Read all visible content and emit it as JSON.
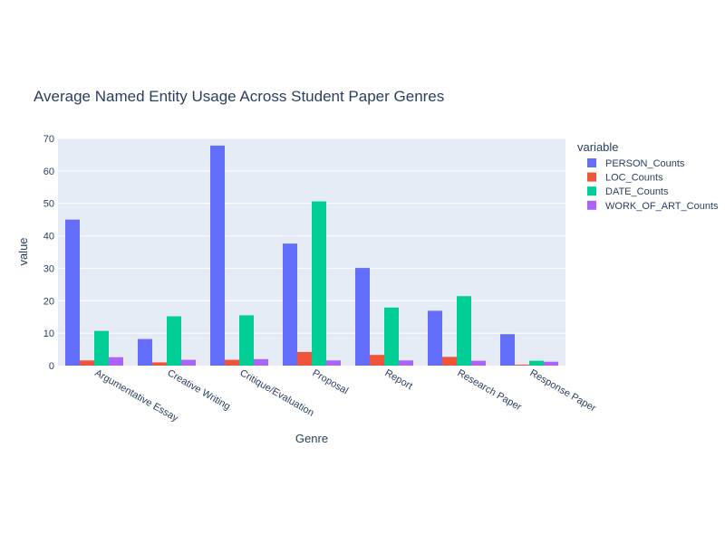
{
  "chart_data": {
    "type": "bar",
    "title": "Average Named Entity Usage Across Student Paper Genres",
    "xlabel": "Genre",
    "ylabel": "value",
    "ylim": [
      0,
      70
    ],
    "yticks": [
      0,
      10,
      20,
      30,
      40,
      50,
      60,
      70
    ],
    "grid": true,
    "legend_title": "variable",
    "legend_position": "right",
    "categories": [
      "Argumentative Essay",
      "Creative Writing",
      "Critique/Evaluation",
      "Proposal",
      "Report",
      "Research Paper",
      "Response Paper"
    ],
    "series": [
      {
        "name": "PERSON_Counts",
        "color": "#636efa",
        "values": [
          45.0,
          8.2,
          67.8,
          37.6,
          30.1,
          16.9,
          9.7
        ]
      },
      {
        "name": "LOC_Counts",
        "color": "#ef553b",
        "values": [
          1.6,
          1.0,
          1.8,
          4.2,
          3.3,
          2.7,
          0.3
        ]
      },
      {
        "name": "DATE_Counts",
        "color": "#00cc96",
        "values": [
          10.7,
          15.2,
          15.5,
          50.6,
          17.9,
          21.4,
          1.5
        ]
      },
      {
        "name": "WORK_OF_ART_Counts",
        "color": "#ab63fa",
        "values": [
          2.6,
          1.8,
          2.0,
          1.6,
          1.6,
          1.5,
          1.2
        ]
      }
    ]
  }
}
